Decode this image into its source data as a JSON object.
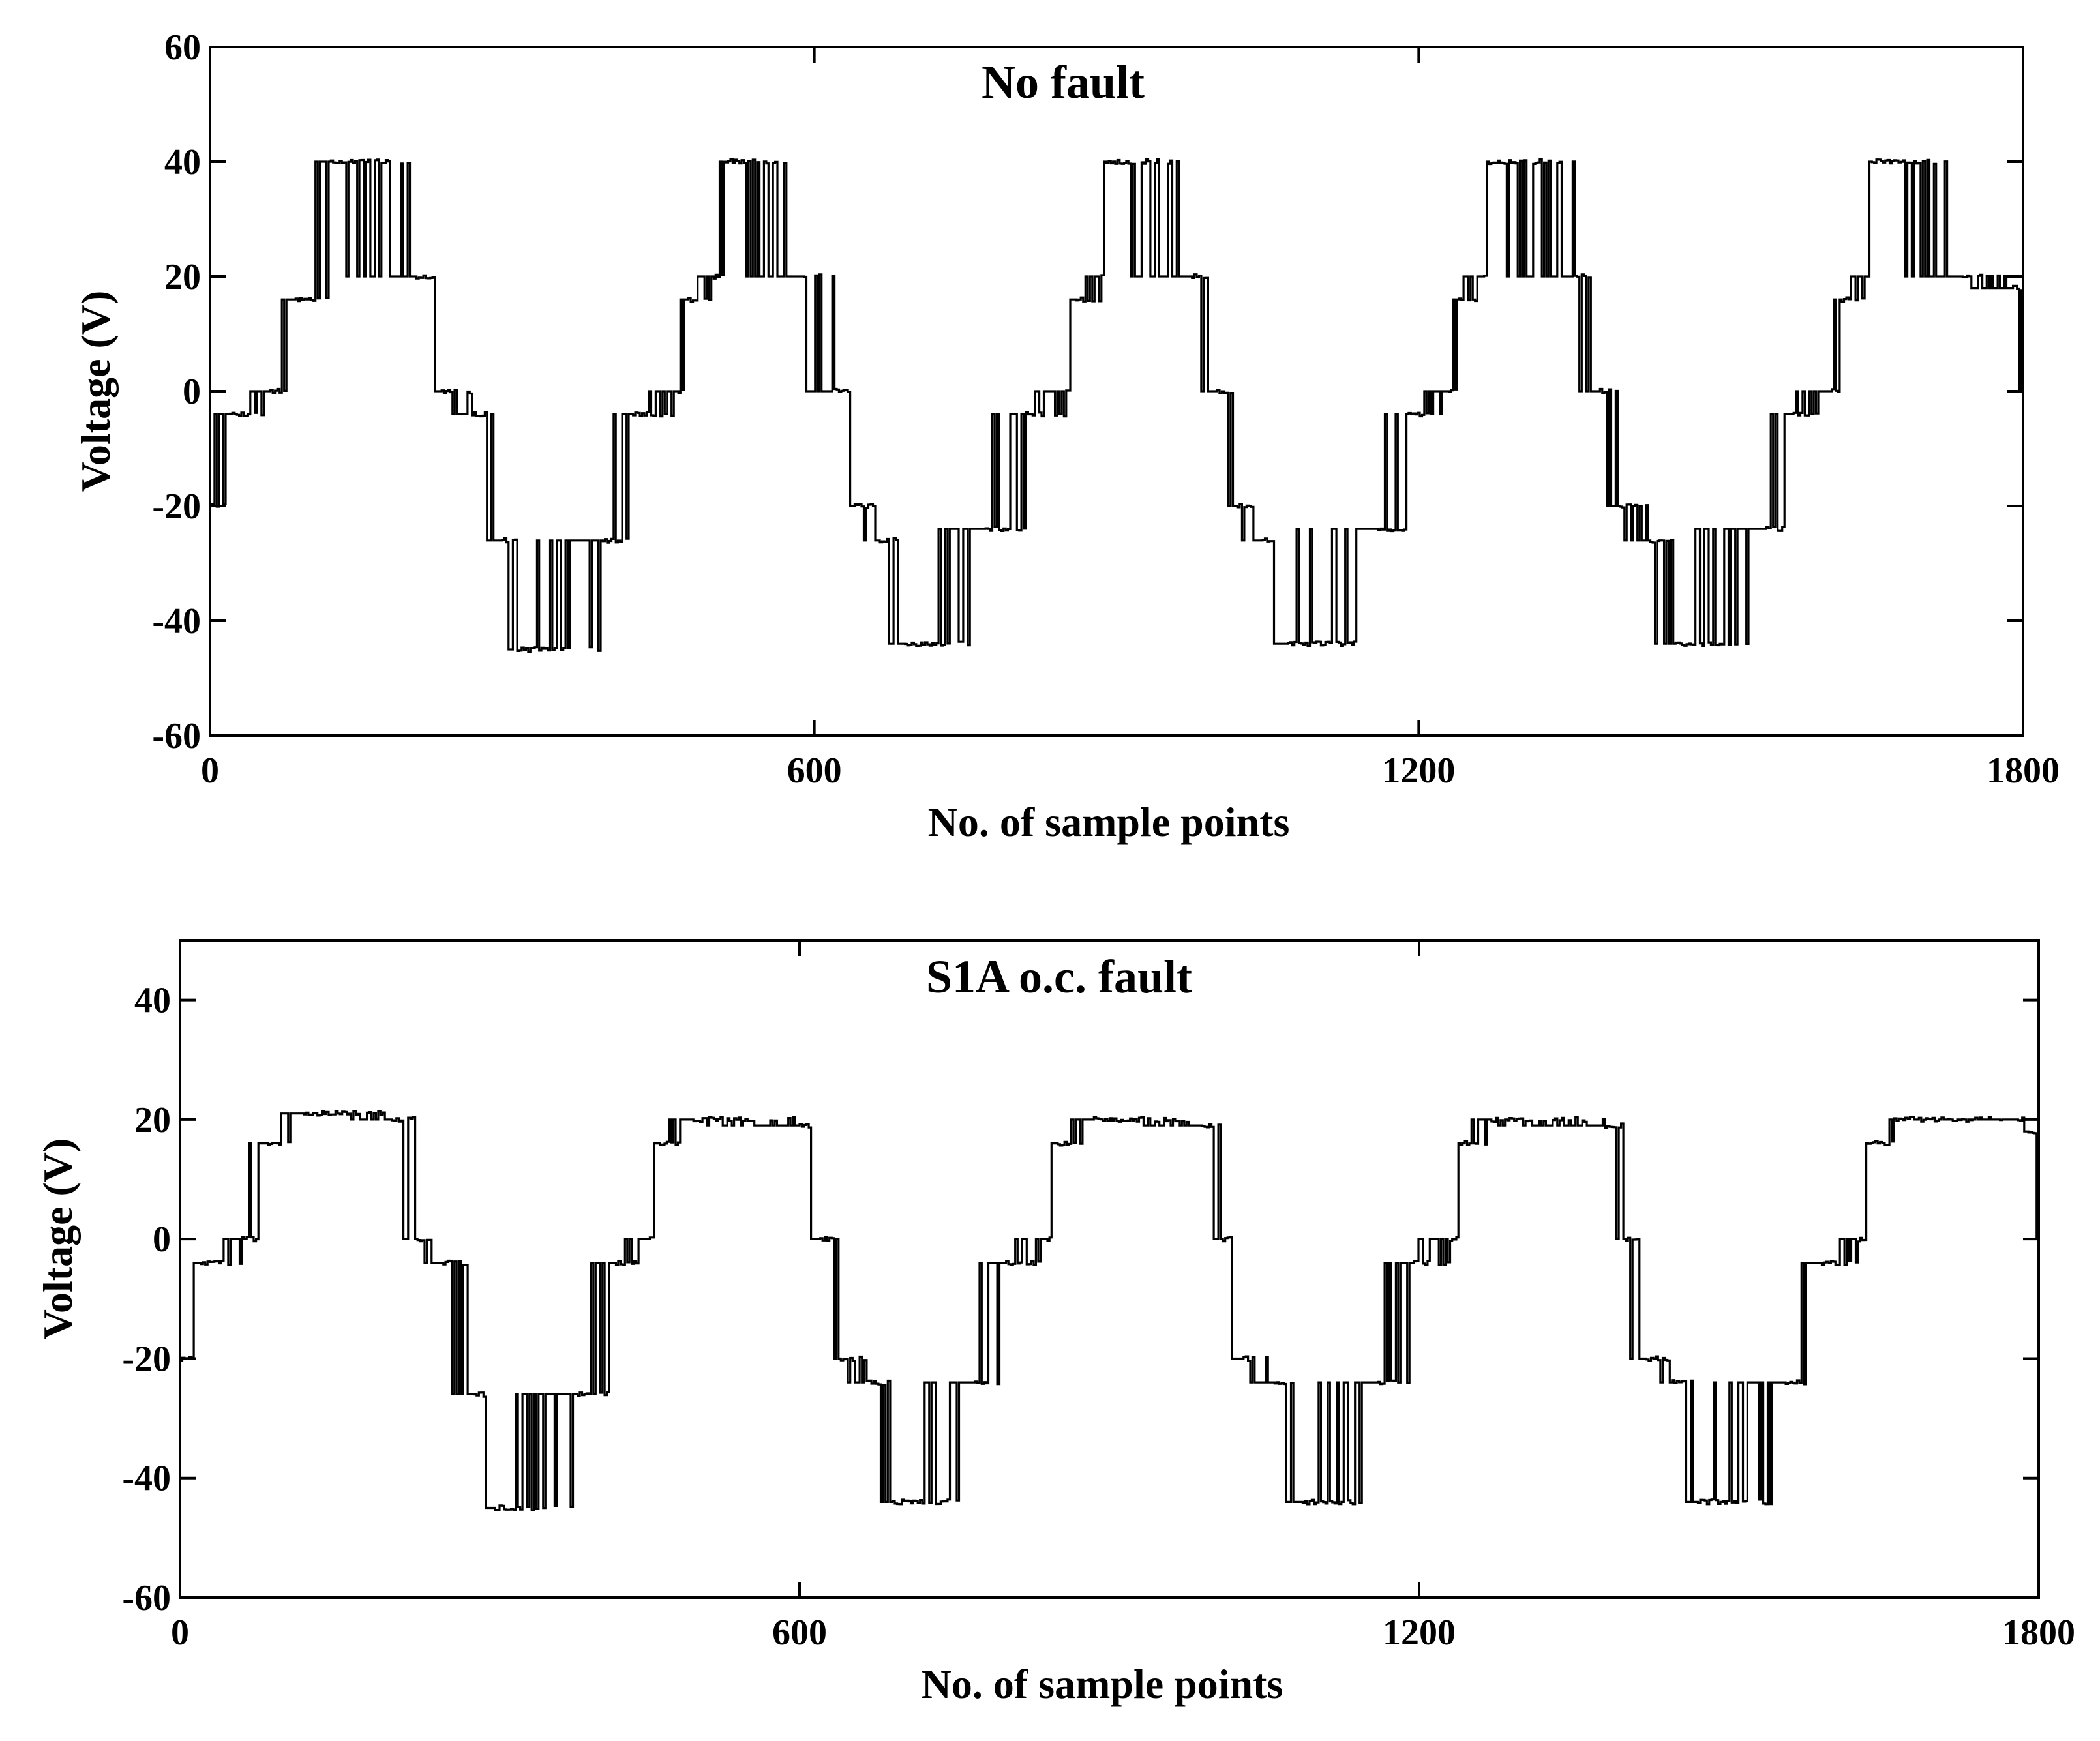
{
  "chart_data": [
    {
      "type": "line",
      "title": "No fault",
      "xlabel": "No. of sample points",
      "ylabel": "Voltage (V)",
      "xlim": [
        0,
        1800
      ],
      "ylim": [
        -60,
        60
      ],
      "xticks": [
        "0",
        "600",
        "1200",
        "1800"
      ],
      "yticks": [
        "-60",
        "-40",
        "-20",
        "0",
        "20",
        "40",
        "60"
      ],
      "grid": false,
      "legend": "none",
      "line_color": "#000000",
      "series": [
        {
          "period_samples": 380,
          "levels": [
            {
              "x": 0,
              "y": -20
            },
            {
              "x": 20,
              "y": -4
            },
            {
              "x": 60,
              "y": 0
            },
            {
              "x": 85,
              "y": 16
            },
            {
              "x": 120,
              "y": 40
            },
            {
              "x": 205,
              "y": 20
            },
            {
              "x": 230,
              "y": 0
            },
            {
              "x": 260,
              "y": -4
            },
            {
              "x": 290,
              "y": -26
            },
            {
              "x": 305,
              "y": -45
            },
            {
              "x": 390,
              "y": -26
            },
            {
              "x": 420,
              "y": -4
            },
            {
              "x": 465,
              "y": 0
            },
            {
              "x": 475,
              "y": 16
            },
            {
              "x": 500,
              "y": 20
            },
            {
              "x": 510,
              "y": 40
            },
            {
              "x": 590,
              "y": 20
            },
            {
              "x": 620,
              "y": 0
            },
            {
              "x": 640,
              "y": -20
            },
            {
              "x": 665,
              "y": -26
            },
            {
              "x": 690,
              "y": -44
            },
            {
              "x": 770,
              "y": -24
            },
            {
              "x": 810,
              "y": -4
            },
            {
              "x": 850,
              "y": 0
            },
            {
              "x": 860,
              "y": 16
            },
            {
              "x": 885,
              "y": 20
            },
            {
              "x": 890,
              "y": 40
            },
            {
              "x": 975,
              "y": 20
            },
            {
              "x": 1000,
              "y": 0
            },
            {
              "x": 1020,
              "y": -20
            },
            {
              "x": 1045,
              "y": -26
            },
            {
              "x": 1070,
              "y": -44
            },
            {
              "x": 1160,
              "y": -24
            },
            {
              "x": 1190,
              "y": -4
            },
            {
              "x": 1230,
              "y": 0
            },
            {
              "x": 1240,
              "y": 16
            },
            {
              "x": 1265,
              "y": 20
            },
            {
              "x": 1270,
              "y": 40
            },
            {
              "x": 1355,
              "y": 20
            },
            {
              "x": 1380,
              "y": 0
            },
            {
              "x": 1400,
              "y": -20
            },
            {
              "x": 1430,
              "y": -26
            },
            {
              "x": 1455,
              "y": -44
            },
            {
              "x": 1545,
              "y": -24
            },
            {
              "x": 1570,
              "y": -4
            },
            {
              "x": 1610,
              "y": 0
            },
            {
              "x": 1620,
              "y": 16
            },
            {
              "x": 1645,
              "y": 20
            },
            {
              "x": 1650,
              "y": 40
            },
            {
              "x": 1740,
              "y": 20
            },
            {
              "x": 1790,
              "y": 18
            },
            {
              "x": 1800,
              "y": 0
            }
          ]
        }
      ]
    },
    {
      "type": "line",
      "title": "S1A o.c. fault",
      "xlabel": "No. of sample points",
      "ylabel": "Voltage (V)",
      "xlim": [
        0,
        1800
      ],
      "ylim": [
        -60,
        50
      ],
      "xticks": [
        "0",
        "600",
        "1200",
        "1800"
      ],
      "yticks": [
        "-60",
        "-40",
        "-20",
        "0",
        "20",
        "40"
      ],
      "grid": false,
      "legend": "none",
      "line_color": "#000000",
      "series": [
        {
          "period_samples": 380,
          "levels": [
            {
              "x": 0,
              "y": -20
            },
            {
              "x": 20,
              "y": -4
            },
            {
              "x": 60,
              "y": 0
            },
            {
              "x": 85,
              "y": 16
            },
            {
              "x": 120,
              "y": 21
            },
            {
              "x": 205,
              "y": 20
            },
            {
              "x": 230,
              "y": 0
            },
            {
              "x": 255,
              "y": -4
            },
            {
              "x": 285,
              "y": -26
            },
            {
              "x": 305,
              "y": -45
            },
            {
              "x": 385,
              "y": -26
            },
            {
              "x": 420,
              "y": -4
            },
            {
              "x": 455,
              "y": 0
            },
            {
              "x": 465,
              "y": 16
            },
            {
              "x": 495,
              "y": 20
            },
            {
              "x": 600,
              "y": 19
            },
            {
              "x": 620,
              "y": 0
            },
            {
              "x": 640,
              "y": -20
            },
            {
              "x": 665,
              "y": -24
            },
            {
              "x": 690,
              "y": -44
            },
            {
              "x": 770,
              "y": -24
            },
            {
              "x": 800,
              "y": -4
            },
            {
              "x": 840,
              "y": 0
            },
            {
              "x": 850,
              "y": 16
            },
            {
              "x": 885,
              "y": 20
            },
            {
              "x": 990,
              "y": 19
            },
            {
              "x": 1010,
              "y": 0
            },
            {
              "x": 1030,
              "y": -20
            },
            {
              "x": 1060,
              "y": -24
            },
            {
              "x": 1085,
              "y": -44
            },
            {
              "x": 1160,
              "y": -24
            },
            {
              "x": 1195,
              "y": -4
            },
            {
              "x": 1230,
              "y": 0
            },
            {
              "x": 1240,
              "y": 16
            },
            {
              "x": 1270,
              "y": 20
            },
            {
              "x": 1380,
              "y": 19
            },
            {
              "x": 1400,
              "y": 0
            },
            {
              "x": 1420,
              "y": -20
            },
            {
              "x": 1445,
              "y": -24
            },
            {
              "x": 1470,
              "y": -44
            },
            {
              "x": 1555,
              "y": -24
            },
            {
              "x": 1590,
              "y": -4
            },
            {
              "x": 1625,
              "y": 0
            },
            {
              "x": 1635,
              "y": 16
            },
            {
              "x": 1660,
              "y": 20
            },
            {
              "x": 1780,
              "y": 20
            },
            {
              "x": 1790,
              "y": 18
            },
            {
              "x": 1800,
              "y": 0
            }
          ]
        }
      ]
    }
  ]
}
